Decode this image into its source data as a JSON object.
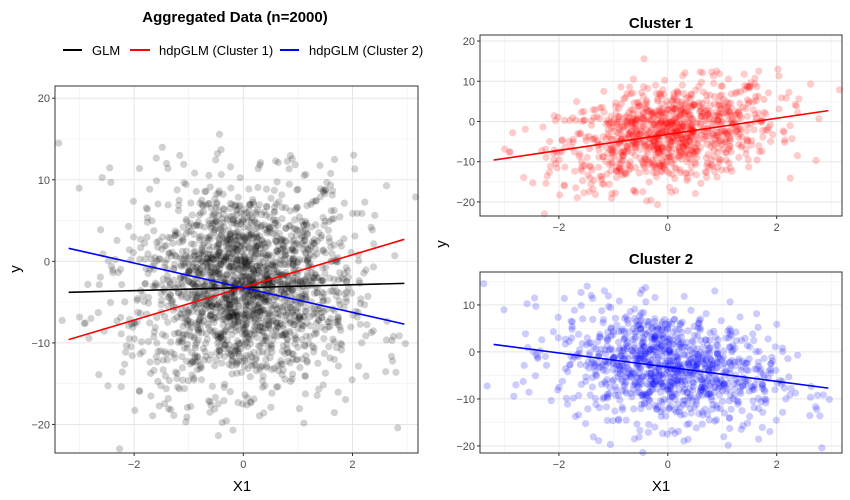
{
  "chart_data": [
    {
      "type": "scatter",
      "title": "Aggregated Data (n=2000)",
      "xlabel": "X1",
      "ylabel": "y",
      "xlim": [
        -3.45,
        3.2
      ],
      "ylim": [
        -23.5,
        21.5
      ],
      "xticks": [
        -2,
        0,
        2
      ],
      "yticks": [
        -20,
        -10,
        0,
        10,
        20
      ],
      "legend": {
        "placement": "top",
        "entries": [
          {
            "label": "GLM",
            "color": "#000000"
          },
          {
            "label": "hdpGLM (Cluster 1)",
            "color": "#ff0000"
          },
          {
            "label": "hdpGLM (Cluster 2)",
            "color": "#0000ff"
          }
        ]
      },
      "points": {
        "n": 2000,
        "color": "#000000",
        "alpha": 0.18,
        "x_mean": 0,
        "x_sd": 1,
        "y_sd": 6
      },
      "lines": [
        {
          "name": "GLM",
          "color": "#000000",
          "x": [
            -3.2,
            2.95
          ],
          "y": [
            -3.8,
            -2.7
          ]
        },
        {
          "name": "hdpGLM (Cluster 1)",
          "color": "#ff0000",
          "x": [
            -3.2,
            2.95
          ],
          "y": [
            -9.6,
            2.7
          ]
        },
        {
          "name": "hdpGLM (Cluster 2)",
          "color": "#0000ff",
          "x": [
            -3.2,
            2.95
          ],
          "y": [
            1.6,
            -7.7
          ]
        }
      ],
      "grid": true
    },
    {
      "type": "scatter",
      "title": "Cluster 1",
      "xlabel": "",
      "ylabel": "y",
      "xlim": [
        -3.45,
        3.2
      ],
      "ylim": [
        -23.5,
        21.5
      ],
      "xticks": [
        -2,
        0,
        2
      ],
      "yticks": [
        -20,
        -10,
        0,
        10,
        20
      ],
      "points": {
        "n": 1000,
        "color": "#ff0000",
        "alpha": 0.2,
        "intercept": -3.2,
        "slope": 2,
        "y_sd": 6
      },
      "line": {
        "color": "#ff0000",
        "x": [
          -3.2,
          2.95
        ],
        "y": [
          -9.6,
          2.7
        ]
      },
      "grid": true
    },
    {
      "type": "scatter",
      "title": "Cluster 2",
      "xlabel": "X1",
      "ylabel": "",
      "xlim": [
        -3.45,
        3.2
      ],
      "ylim": [
        -21.5,
        17
      ],
      "xticks": [
        -2,
        0,
        2
      ],
      "yticks": [
        -20,
        -10,
        0,
        10
      ],
      "points": {
        "n": 1000,
        "color": "#0000ff",
        "alpha": 0.2,
        "intercept": -3.2,
        "slope": -1.5,
        "y_sd": 6
      },
      "line": {
        "color": "#0000ff",
        "x": [
          -3.2,
          2.95
        ],
        "y": [
          1.6,
          -7.7
        ]
      },
      "grid": true
    }
  ],
  "shared_ylabel": "y"
}
